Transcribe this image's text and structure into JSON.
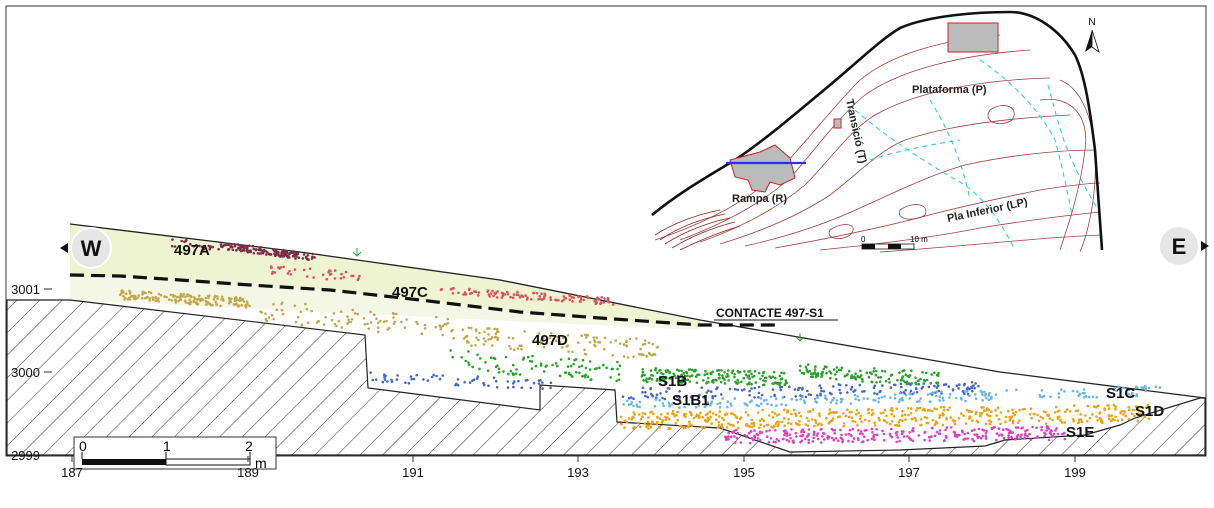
{
  "axes": {
    "x_ticks": [
      "187",
      "189",
      "191",
      "193",
      "195",
      "197",
      "199"
    ],
    "y_ticks": [
      "3001",
      "3000",
      "2999"
    ]
  },
  "orientation": {
    "west": "W",
    "east": "E"
  },
  "scale_bar": {
    "labels": [
      "0",
      "1",
      "2"
    ],
    "unit": "m"
  },
  "layers": {
    "l497A": "497A",
    "l497C": "497C",
    "l497D": "497D",
    "s1b": "S1B",
    "s1b1": "S1B1",
    "s1c": "S1C",
    "s1d": "S1D",
    "s1e": "S1E"
  },
  "contact_label": "CONTACTE 497-S1",
  "layer_colors": {
    "497A": "#7b2d48",
    "497C": "#e0505a",
    "497D": "#c2a84a",
    "S1B": "#2aa12a",
    "S1B1": "#4466cc",
    "S1C": "#6ab4e8",
    "S1D": "#f0a010",
    "S1E": "#e040c0"
  },
  "inset_map": {
    "north": "N",
    "plataforma": "Plataforma (P)",
    "transicio": "Transició (T)",
    "rampa": "Rampa (R)",
    "pla_inferior": "Pla Inferior (LP)",
    "scale_labels": [
      "0",
      "10 m"
    ]
  }
}
